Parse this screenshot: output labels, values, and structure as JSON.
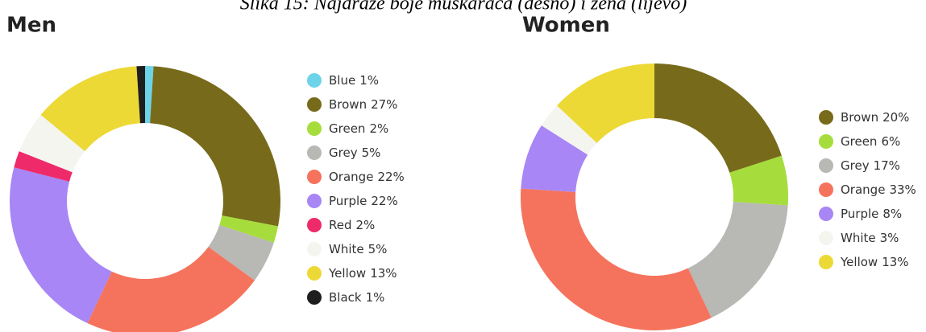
{
  "caption": "Slika 15: Najdraže boje muškaraca (desno) i žena (lijevo)",
  "chart_data": [
    {
      "type": "pie",
      "donut": true,
      "title": "Men",
      "categories": [
        "Blue",
        "Brown",
        "Green",
        "Grey",
        "Orange",
        "Purple",
        "Red",
        "White",
        "Yellow",
        "Black"
      ],
      "values": [
        1,
        27,
        2,
        5,
        22,
        22,
        2,
        5,
        13,
        1
      ],
      "value_labels": [
        "1%",
        "27%",
        "2%",
        "5%",
        "22%",
        "22%",
        "2%",
        "5%",
        "13%",
        "1%"
      ],
      "colors": [
        "#6dd3e8",
        "#776b1b",
        "#a6dd3c",
        "#b8b8b4",
        "#f5735c",
        "#a886f5",
        "#ee2a6b",
        "#f5f5f0",
        "#ecd935",
        "#1e1e1e"
      ]
    },
    {
      "type": "pie",
      "donut": true,
      "title": "Women",
      "categories": [
        "Brown",
        "Green",
        "Grey",
        "Orange",
        "Purple",
        "White",
        "Yellow"
      ],
      "values": [
        20,
        6,
        17,
        33,
        8,
        3,
        13
      ],
      "value_labels": [
        "20%",
        "6%",
        "17%",
        "33%",
        "8%",
        "3%",
        "13%"
      ],
      "colors": [
        "#776b1b",
        "#a6dd3c",
        "#b8b8b4",
        "#f5735c",
        "#a886f5",
        "#f5f5f0",
        "#ecd935"
      ]
    }
  ]
}
